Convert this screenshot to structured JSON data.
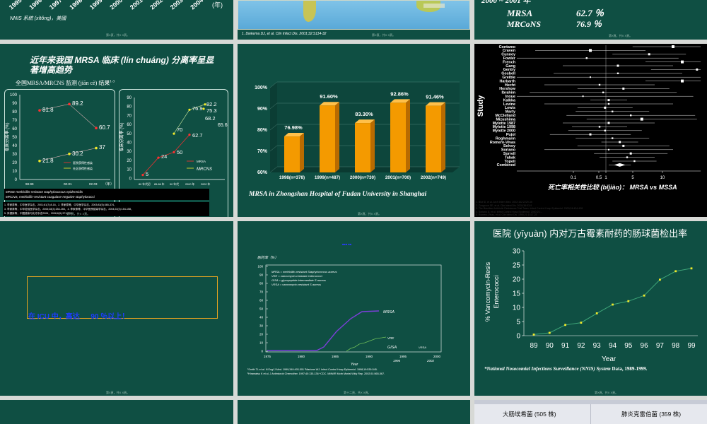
{
  "s1": {
    "years": [
      "1995",
      "1996",
      "1997",
      "1998",
      "1999",
      "2000",
      "2001",
      "2002",
      "2003",
      "2004"
    ],
    "year_unit": "(年)",
    "system_note": "NNIS 系統 (xìtǒng)，美國",
    "footer": "第X頁，共X X頁。"
  },
  "s2": {
    "citation": "1. Diekema DJ, et al. Clin Infect Dis. 2001;32:S114-32",
    "footer": "第X頁，共X X頁。"
  },
  "s3": {
    "line1_years": "2000 ~ 2001 年",
    "rows": [
      {
        "label": "MRSA",
        "value": "62.7 ％"
      },
      {
        "label": "MRCoNS",
        "value": "76.9 ％"
      }
    ],
    "footer": "第X頁，共X X頁。"
  },
  "s4": {
    "title": "近年来我国 MRSA 临床 (lín chuáng) 分离率呈显著增高趋势",
    "subtitle": "全国MRSA/MRCNS 监测 (jiān cè) 结果",
    "subtitle_sup": "1-3",
    "left": {
      "ylabel": "临床分离率 (%)",
      "yticks": [
        "100",
        "90",
        "80",
        "70",
        "60",
        "50",
        "40",
        "30",
        "20",
        "10",
        "0"
      ],
      "xticks": [
        "98-99",
        "00-01",
        "02-03"
      ],
      "x_unit": "（年）",
      "points_top": [
        {
          "v": "81.8"
        },
        {
          "v": "89.2"
        },
        {
          "v": "60.7"
        }
      ],
      "points_bottom": [
        {
          "v": "21.8"
        },
        {
          "v": "30.2"
        },
        {
          "v": "37"
        }
      ],
      "legend": [
        "医院获得性感染",
        "社区获得性感染"
      ]
    },
    "right": {
      "ylabel": "临床分离率 (%)",
      "yticks": [
        "90",
        "80",
        "70",
        "60",
        "50",
        "40",
        "30",
        "20",
        "10",
        "0"
      ],
      "xticks": [
        "80 年代初",
        "85-86 年",
        "90 年代",
        "2000 年",
        "2002 年"
      ],
      "labels": [
        "82.2",
        "76.9",
        "75.3",
        "68.2",
        "65.6",
        "70",
        "62.7",
        "50",
        "24",
        "5"
      ],
      "legend": [
        "MRSA",
        "MRCNS"
      ]
    },
    "note1": "MRSE-methicillin-resistant staphylococcus epidermidis",
    "note2": "MRCNS, methicillin-resistant coagulase-negative staphylococci",
    "refs1": "1. 李家泰等，中华医学杂志，2001;81(7):8-16，2. 李家泰等，中华医学杂志，2003;83(5):365-374，",
    "refs2": "3. 李家泰等，中华检验医学杂志，2005;28(3):254-265，4. 李家泰等，中华医院感染学杂志，2004;22(3):154-158，",
    "refs3": "5. 朱德妹等，中国感染与化疗杂志2006，2008;6(5):371-379",
    "footer": "第X頁，共X X頁。"
  },
  "s5": {
    "chart_data": {
      "type": "bar",
      "categories": [
        "1998(n=378)",
        "1999(n=487)",
        "2000(n=730)",
        "2001(n=700)",
        "2002(n=749)"
      ],
      "values": [
        76.98,
        91.6,
        83.3,
        92.86,
        91.46
      ],
      "value_labels": [
        "76.98%",
        "91.60%",
        "83.30%",
        "92.86%",
        "91.46%"
      ],
      "yticks": [
        "60%",
        "70%",
        "80%",
        "90%",
        "100%"
      ],
      "ylim": [
        60,
        100
      ]
    },
    "caption": "MRSA in Zhongshan Hospital of Fudan University in Shanghai",
    "footer": "第X頁，共X X頁。"
  },
  "s6": {
    "studies": [
      "Contamo",
      "Craven",
      "Cunney",
      "Fowler",
      "French",
      "Gang",
      "Gentry",
      "Gosbell",
      "Greible",
      "Harbarth",
      "Hecht",
      "Hershow",
      "Ibrahim",
      "Inoue",
      "Kalkka",
      "Levine",
      "Lewis",
      "Marty",
      "McClelland",
      "Mizushima",
      "Mylotte 1987",
      "Mylotte 1998",
      "Mylotte 2000",
      "Pujol",
      "Roghmann",
      "Romero-Vivas",
      "Selvey",
      "Soriano",
      "Sorrell",
      "Tabak",
      "Topeli",
      "Combined"
    ],
    "axis_label": "Study",
    "xticks": [
      "0.1",
      "0.5",
      "1",
      "5",
      "10"
    ],
    "caption": "死亡率相关性比较 (bǐjiào)： MRSA vs MSSA",
    "refs": [
      "1. Blot SI, et al. Arch Intern Med. 2002;162:2229-35",
      "2. Cosgrove SE, et al. Clin Infect Dis. 2003;36:53-9",
      "3. The Brazilian Antibiotic Resistance Trial Team. Infect Control Hosp Epidemiol. 2003;24:434-438",
      "4. Soriano A, et al. Infect Control Hosp Epidemiol. 2000;21:...",
      "5. Romero-Vivas, et al. Clin Infect Dis. 1995;21:1417-23"
    ]
  },
  "s7": {
    "text": "在 ICU 中，高达　  90 ％以上！",
    "footer": "第X頁，共X X頁。"
  },
  "s8": {
    "tag": "■■■ ■■",
    "ylabel": "耐药率（%）",
    "yticks": [
      "100",
      "90",
      "80",
      "70",
      "60",
      "50",
      "40",
      "30",
      "20",
      "10",
      "0"
    ],
    "xticks": [
      "1975",
      "1980",
      "1985",
      "1990",
      "1995",
      "2000"
    ],
    "xticks2": [
      "1996",
      "2002"
    ],
    "xlabel": "Year",
    "legend": [
      "MRSA = methicillin-resistant Staphylococcus aureus",
      "VRE = vancomycin-resistant enterococci",
      "GISA = glycopeptide-intermediate S aureus",
      "VRSA = vancomycin-resistant S aureus"
    ],
    "line_labels": [
      "MRSA",
      "VRE",
      "GISA",
      "VRSA"
    ],
    "refs1": "¹Smith TL et al. N Engl J Med. 1999;340:493-501  ²Martone WJ. Infect Control Hosp Epidemiol. 1998;19:539-545.",
    "refs2": "³Hiramatsu K et al. J Antimicrob Chemother. 1997;40:135-136  ⁴CDC. MMWR Morb Mortal Wkly Rep. 2002;51:565-567.",
    "footer": "第十二頁，共X X頁。"
  },
  "s9": {
    "title": "医院 (yīyuàn) 内对万古霉素耐药的肠球菌检出率",
    "ylabel1": "% Vancomycin-Resis",
    "ylabel2": "Enterococci",
    "xlabel": "Year",
    "chart_data": {
      "type": "line",
      "x": [
        "89",
        "90",
        "91",
        "92",
        "93",
        "94",
        "95",
        "96",
        "97",
        "98",
        "99"
      ],
      "values": [
        0.4,
        1.0,
        3.8,
        4.6,
        7.9,
        11.0,
        12.2,
        14.2,
        19.8,
        22.8,
        23.8
      ],
      "ylim": [
        0,
        30
      ],
      "yticks": [
        "0",
        "5",
        "10",
        "15",
        "20",
        "25",
        "30"
      ]
    },
    "caption_italic": "*National Nosocomial Infections Surveillance (NNIS) System",
    "caption_tail": " Data, 1989-1999.",
    "footer": "第X頁，共X X頁。"
  },
  "s12": {
    "col1": "大肠埃希菌 (505 株)",
    "col2": "肺炎克雷伯菌 (359 株)"
  }
}
